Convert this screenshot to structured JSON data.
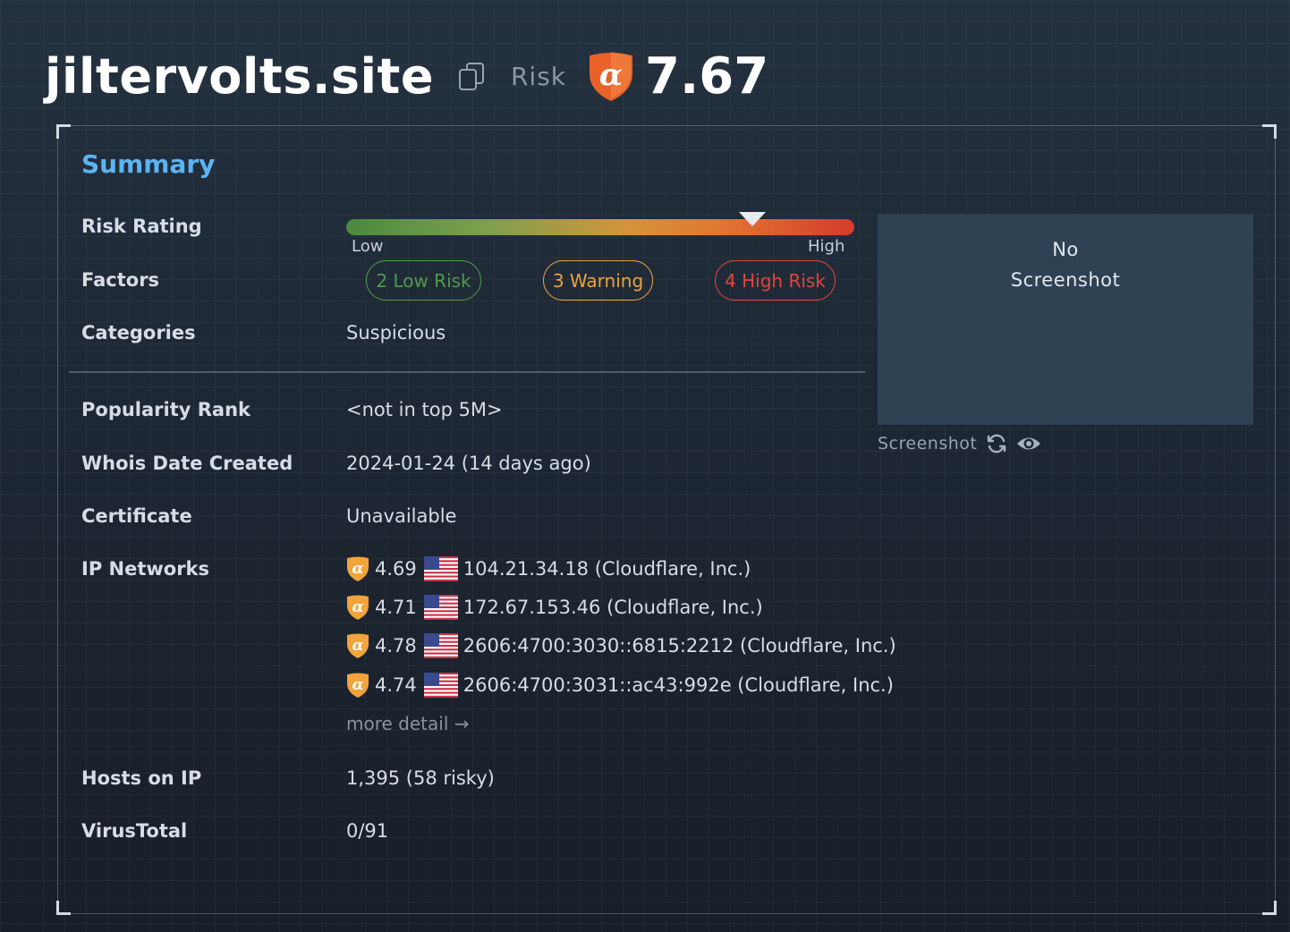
{
  "header": {
    "domain": "jiltervolts.site",
    "risk_label": "Risk",
    "risk_score": "7.67",
    "icons": [
      "copy-icon",
      "alpha-shield-icon"
    ]
  },
  "summary": {
    "title": "Summary",
    "rows": {
      "risk_rating": {
        "label": "Risk Rating",
        "low": "Low",
        "high": "High",
        "level": 0.8
      },
      "factors": {
        "label": "Factors",
        "low": "2 Low Risk",
        "warning": "3 Warning",
        "high": "4 High Risk"
      },
      "categories": {
        "label": "Categories",
        "value": "Suspicious"
      },
      "popularity": {
        "label": "Popularity Rank",
        "value": "<not in top 5M>"
      },
      "whois": {
        "label": "Whois Date Created",
        "value": "2024-01-24 (14 days ago)"
      },
      "certificate": {
        "label": "Certificate",
        "value": "Unavailable"
      },
      "ip_networks": {
        "label": "IP Networks",
        "items": [
          {
            "score": "4.69",
            "flag": "us-flag-icon",
            "text": "104.21.34.18 (Cloudflare, Inc.)"
          },
          {
            "score": "4.71",
            "flag": "us-flag-icon",
            "text": "172.67.153.46 (Cloudflare, Inc.)"
          },
          {
            "score": "4.78",
            "flag": "us-flag-icon",
            "text": "2606:4700:3030::6815:2212 (Cloudflare, Inc.)"
          },
          {
            "score": "4.74",
            "flag": "us-flag-icon",
            "text": "2606:4700:3031::ac43:992e (Cloudflare, Inc.)"
          }
        ],
        "more": "more detail →"
      },
      "hosts": {
        "label": "Hosts on IP",
        "value": "1,395 (58 risky)"
      },
      "virustotal": {
        "label": "VirusTotal",
        "value": "0/91"
      }
    }
  },
  "screenshot": {
    "line1": "No",
    "line2": "Screenshot",
    "footer_label": "Screenshot",
    "icons": [
      "refresh-icon",
      "eye-icon"
    ]
  },
  "colors": {
    "accent": "#5bb4f2",
    "low": "#4f9a4c",
    "warning": "#e8a33f",
    "high": "#e0473c",
    "shield": "#e8622a",
    "ip_shield": "#f0a43a"
  }
}
